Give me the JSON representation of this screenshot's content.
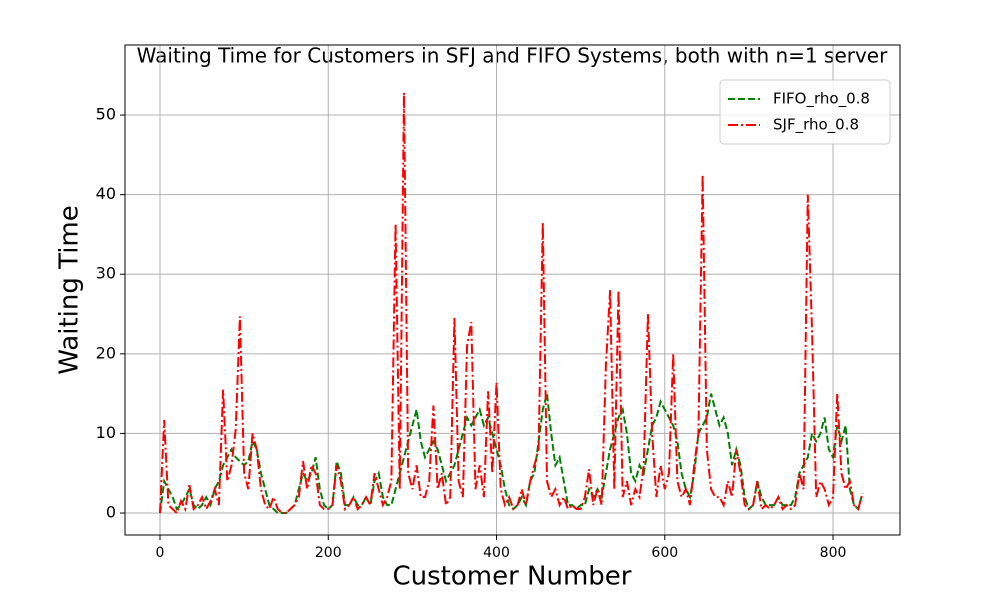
{
  "chart_data": {
    "type": "line",
    "title": "Waiting Time for Customers in SFJ and FIFO Systems, both with n=1 server",
    "x_label": "Customer Number",
    "y_label": "Waiting Time",
    "x": [
      0,
      5,
      10,
      15,
      20,
      25,
      30,
      35,
      40,
      45,
      50,
      55,
      60,
      65,
      70,
      75,
      80,
      85,
      90,
      95,
      100,
      105,
      110,
      115,
      120,
      125,
      130,
      135,
      140,
      145,
      150,
      155,
      160,
      165,
      170,
      175,
      180,
      185,
      190,
      195,
      200,
      205,
      210,
      215,
      220,
      225,
      230,
      235,
      240,
      245,
      250,
      255,
      260,
      265,
      270,
      275,
      280,
      285,
      290,
      295,
      300,
      305,
      310,
      315,
      320,
      325,
      330,
      335,
      340,
      345,
      350,
      355,
      360,
      365,
      370,
      375,
      380,
      385,
      390,
      395,
      400,
      405,
      410,
      415,
      420,
      425,
      430,
      435,
      440,
      445,
      450,
      455,
      460,
      465,
      470,
      475,
      480,
      485,
      490,
      495,
      500,
      505,
      510,
      515,
      520,
      525,
      530,
      535,
      540,
      545,
      550,
      555,
      560,
      565,
      570,
      575,
      580,
      585,
      590,
      595,
      600,
      605,
      610,
      615,
      620,
      625,
      630,
      635,
      640,
      645,
      650,
      655,
      660,
      665,
      670,
      675,
      680,
      685,
      690,
      695,
      700,
      705,
      710,
      715,
      720,
      725,
      730,
      735,
      740,
      745,
      750,
      755,
      760,
      765,
      770,
      775,
      780,
      785,
      790,
      795,
      800,
      805,
      810,
      815,
      820,
      825,
      830,
      835
    ],
    "series": [
      {
        "name": "FIFO_rho_0.8",
        "color": "#008000",
        "linestyle": "dashed",
        "values": [
          0,
          4,
          3,
          2,
          0.5,
          1,
          2,
          3,
          1,
          0.5,
          1,
          2,
          1,
          3,
          4,
          6,
          7,
          8,
          7,
          6.5,
          6,
          6.5,
          9,
          8,
          5,
          3,
          1,
          0.5,
          0,
          0,
          0,
          0.5,
          1,
          3,
          5,
          4,
          5,
          7,
          3,
          1,
          0.5,
          1,
          6.5,
          5,
          1,
          1,
          2,
          1,
          1,
          2,
          1,
          4,
          5,
          2,
          1,
          1,
          3,
          5,
          7,
          9,
          11,
          13,
          9,
          7,
          8,
          9,
          8,
          6,
          4,
          5,
          6,
          8,
          10,
          12,
          11,
          12,
          13,
          11,
          12,
          10,
          8,
          6,
          3,
          1,
          0.5,
          1,
          2,
          1,
          4,
          5,
          9,
          13,
          15,
          10,
          6,
          7,
          4,
          1,
          1,
          0.5,
          1,
          1,
          3,
          2,
          3,
          2,
          5,
          8,
          10,
          12,
          13,
          10,
          5,
          4,
          6,
          5,
          8,
          11,
          12,
          14,
          13,
          12,
          11,
          9,
          5,
          3,
          2,
          5,
          10,
          11,
          12,
          15,
          13,
          11,
          12,
          10,
          6,
          8,
          6,
          2,
          0.5,
          1,
          4,
          2,
          1,
          1,
          1,
          2,
          1,
          1,
          1,
          2,
          5,
          6,
          7,
          10,
          9,
          10,
          12,
          8,
          7,
          11,
          9,
          11,
          3,
          1,
          0.5,
          2.5
        ]
      },
      {
        "name": "SJF_rho_0.8",
        "color": "#ff0000",
        "linestyle": "dashdot",
        "values": [
          0,
          11.7,
          1,
          0.5,
          0,
          1.5,
          0.5,
          3.5,
          0.5,
          1,
          2,
          0.5,
          1.5,
          3,
          1,
          15.5,
          4,
          6,
          10.5,
          24.7,
          5,
          3,
          10,
          8,
          3,
          1,
          0.5,
          2,
          0.5,
          0,
          0,
          0.5,
          1,
          2,
          6.5,
          3,
          6,
          5,
          1,
          0.5,
          0.5,
          1,
          6,
          4,
          0.5,
          1,
          2,
          0.5,
          1,
          2,
          1,
          5,
          3,
          1,
          2,
          4,
          36.3,
          3,
          52.8,
          5,
          3,
          6,
          2,
          2,
          4,
          13.5,
          3,
          5,
          1,
          2,
          24.5,
          4,
          2,
          21,
          24,
          3,
          6,
          2,
          15.3,
          5,
          16.4,
          3,
          1,
          2,
          0.5,
          1,
          3,
          1,
          4,
          6,
          8,
          36.5,
          4,
          2,
          3,
          1,
          2,
          0.5,
          1,
          0.5,
          0.5,
          2,
          5.5,
          1,
          3,
          1,
          18.5,
          28,
          3,
          28,
          2,
          4,
          1,
          3,
          2,
          6,
          25,
          10,
          2,
          6,
          3,
          5,
          20,
          4,
          2,
          3,
          1,
          6,
          10,
          42.5,
          8,
          3,
          2,
          2,
          1,
          4,
          2,
          8,
          5,
          1,
          0.5,
          1,
          4,
          0.5,
          1,
          0.5,
          1,
          2,
          0.5,
          1,
          0.5,
          1,
          5,
          3,
          40,
          23,
          2,
          4,
          3,
          1,
          2,
          15,
          5,
          3,
          4,
          1,
          0.5,
          2.5
        ]
      }
    ],
    "xlim": [
      -41.6,
      879.6
    ],
    "ylim": [
      -2.76,
      58.8
    ],
    "xticks": [
      0,
      200,
      400,
      600,
      800
    ],
    "yticks": [
      0,
      10,
      20,
      30,
      40,
      50
    ],
    "grid": true,
    "legend": "upper right"
  }
}
